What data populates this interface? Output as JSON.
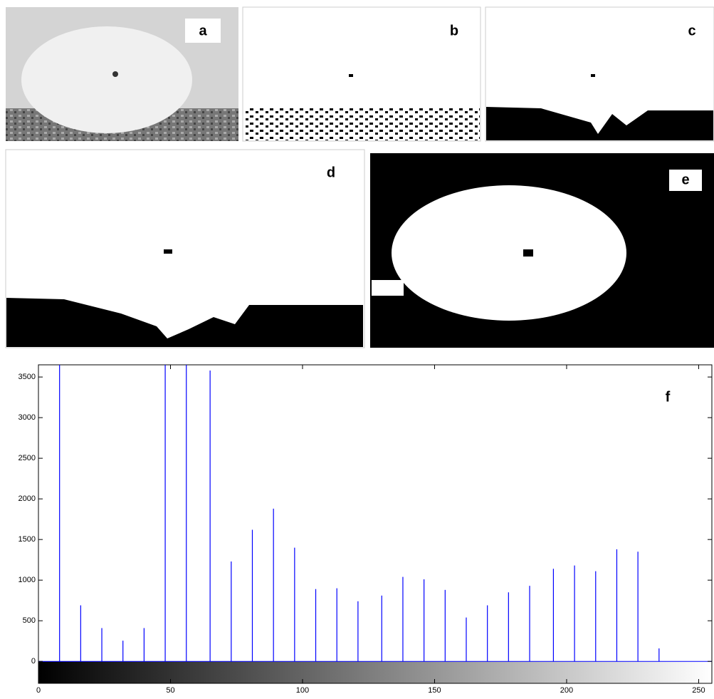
{
  "panels": [
    {
      "label": "a"
    },
    {
      "label": "b"
    },
    {
      "label": "c"
    },
    {
      "label": "d"
    },
    {
      "label": "e"
    }
  ],
  "chart_data": {
    "type": "stem",
    "annotation": "f",
    "x": [
      8,
      16,
      24,
      32,
      40,
      48,
      56,
      65,
      73,
      81,
      89,
      97,
      105,
      113,
      121,
      130,
      138,
      146,
      154,
      162,
      170,
      178,
      186,
      195,
      203,
      211,
      219,
      227,
      235
    ],
    "values": [
      3650,
      690,
      410,
      255,
      410,
      3650,
      3650,
      3580,
      1230,
      1620,
      1880,
      1400,
      890,
      900,
      740,
      810,
      1040,
      1010,
      880,
      540,
      690,
      850,
      930,
      1140,
      1180,
      1110,
      1380,
      1350,
      160
    ],
    "color": "#0000ff",
    "xlim": [
      0,
      255
    ],
    "xticks": [
      0,
      50,
      100,
      150,
      200,
      250
    ],
    "ylim": [
      -270,
      3650
    ],
    "yticks": [
      0,
      500,
      1000,
      1500,
      2000,
      2500,
      3000,
      3500
    ]
  }
}
